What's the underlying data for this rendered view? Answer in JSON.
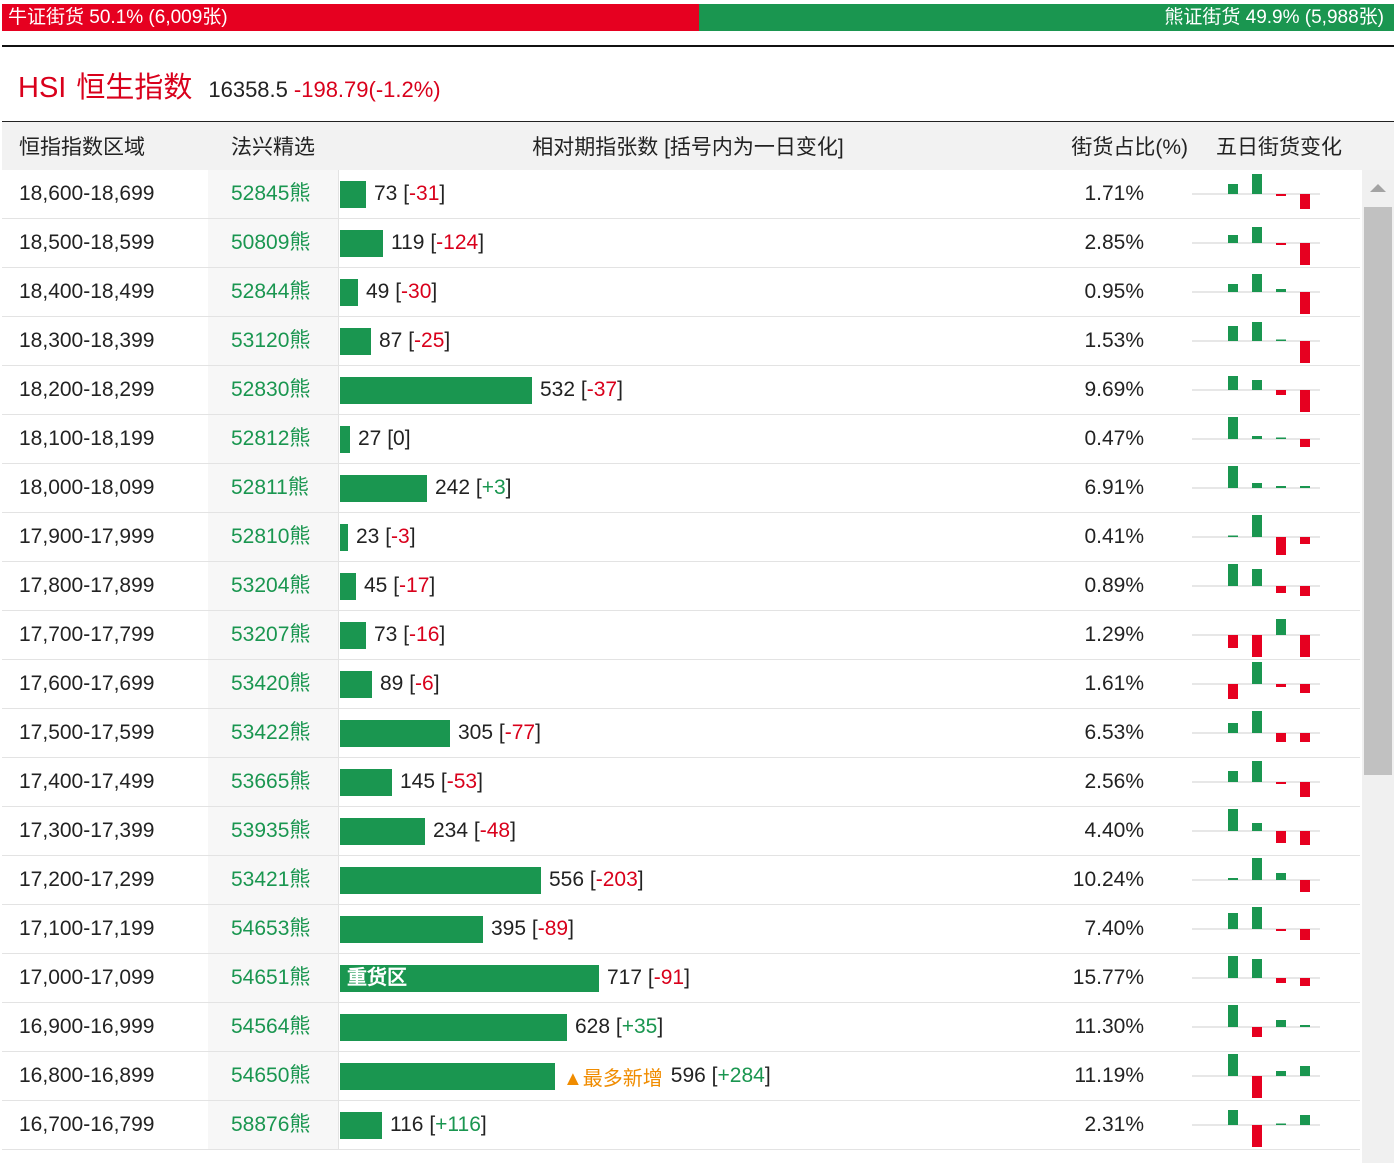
{
  "ratio": {
    "bull_label": "牛证街货 50.1% (6,009张)",
    "bear_label": "熊证街货 49.9% (5,988张)",
    "bull_fraction": 0.501,
    "bull_color": "#e60020",
    "bear_color": "#1a9650"
  },
  "header": {
    "code": "HSI",
    "name": "恒生指数",
    "price": "16358.5",
    "change": "-198.79(-1.2%)"
  },
  "table": {
    "columns": {
      "range": "恒指指数区域",
      "pick": "法兴精选",
      "bars": "相对期指张数 [括号内为一日变化]",
      "share": "街货占比(%)",
      "five_day": "五日街货变化"
    },
    "rows": [
      {
        "range": "18,600-18,699",
        "pick": "52845熊",
        "count": 73,
        "count_text": "73",
        "delta": "-31",
        "tag": "",
        "bar_label": "",
        "share": "1.71%",
        "spark": [
          1,
          2,
          -0.2,
          -1.5
        ]
      },
      {
        "range": "18,500-18,599",
        "pick": "50809熊",
        "count": 119,
        "count_text": "119",
        "delta": "-124",
        "tag": "",
        "bar_label": "",
        "share": "2.85%",
        "spark": [
          0.8,
          1.6,
          -0.2,
          -2.2
        ]
      },
      {
        "range": "18,400-18,499",
        "pick": "52844熊",
        "count": 49,
        "count_text": "49",
        "delta": "-30",
        "tag": "",
        "bar_label": "",
        "share": "0.95%",
        "spark": [
          0.8,
          1.8,
          0.3,
          -2.2
        ]
      },
      {
        "range": "18,300-18,399",
        "pick": "53120熊",
        "count": 87,
        "count_text": "87",
        "delta": "-25",
        "tag": "",
        "bar_label": "",
        "share": "1.53%",
        "spark": [
          1.5,
          1.9,
          0,
          -2.2
        ]
      },
      {
        "range": "18,200-18,299",
        "pick": "52830熊",
        "count": 532,
        "count_text": "532",
        "delta": "-37",
        "tag": "",
        "bar_label": "",
        "share": "9.69%",
        "spark": [
          1.4,
          1,
          -0.5,
          -2.2
        ]
      },
      {
        "range": "18,100-18,199",
        "pick": "52812熊",
        "count": 27,
        "count_text": "27",
        "delta": "0",
        "tag": "",
        "bar_label": "",
        "share": "0.47%",
        "spark": [
          2.2,
          0.3,
          0,
          -0.8
        ]
      },
      {
        "range": "18,000-18,099",
        "pick": "52811熊",
        "count": 242,
        "count_text": "242",
        "delta": "+3",
        "tag": "",
        "bar_label": "",
        "share": "6.91%",
        "spark": [
          2.2,
          0.5,
          0.2,
          0.2
        ]
      },
      {
        "range": "17,900-17,999",
        "pick": "52810熊",
        "count": 23,
        "count_text": "23",
        "delta": "-3",
        "tag": "",
        "bar_label": "",
        "share": "0.41%",
        "spark": [
          0,
          2.2,
          -1.8,
          -0.7
        ]
      },
      {
        "range": "17,800-17,899",
        "pick": "53204熊",
        "count": 45,
        "count_text": "45",
        "delta": "-17",
        "tag": "",
        "bar_label": "",
        "share": "0.89%",
        "spark": [
          2.2,
          1.7,
          -0.7,
          -1
        ]
      },
      {
        "range": "17,700-17,799",
        "pick": "53207熊",
        "count": 73,
        "count_text": "73",
        "delta": "-16",
        "tag": "",
        "bar_label": "",
        "share": "1.29%",
        "spark": [
          -1.3,
          -2.2,
          1.6,
          -2.2
        ]
      },
      {
        "range": "17,600-17,699",
        "pick": "53420熊",
        "count": 89,
        "count_text": "89",
        "delta": "-6",
        "tag": "",
        "bar_label": "",
        "share": "1.61%",
        "spark": [
          -1.5,
          2.2,
          -0.3,
          -0.9
        ]
      },
      {
        "range": "17,500-17,599",
        "pick": "53422熊",
        "count": 305,
        "count_text": "305",
        "delta": "-77",
        "tag": "",
        "bar_label": "",
        "share": "6.53%",
        "spark": [
          1,
          2.2,
          -0.9,
          -0.9
        ]
      },
      {
        "range": "17,400-17,499",
        "pick": "53665熊",
        "count": 145,
        "count_text": "145",
        "delta": "-53",
        "tag": "",
        "bar_label": "",
        "share": "2.56%",
        "spark": [
          1.1,
          2.1,
          -0.2,
          -1.5
        ]
      },
      {
        "range": "17,300-17,399",
        "pick": "53935熊",
        "count": 234,
        "count_text": "234",
        "delta": "-48",
        "tag": "",
        "bar_label": "",
        "share": "4.40%",
        "spark": [
          2.2,
          0.8,
          -1.2,
          -1.4
        ]
      },
      {
        "range": "17,200-17,299",
        "pick": "53421熊",
        "count": 556,
        "count_text": "556",
        "delta": "-203",
        "tag": "",
        "bar_label": "",
        "share": "10.24%",
        "spark": [
          0.2,
          2.2,
          0.7,
          -1.2
        ]
      },
      {
        "range": "17,100-17,199",
        "pick": "54653熊",
        "count": 395,
        "count_text": "395",
        "delta": "-89",
        "tag": "",
        "bar_label": "",
        "share": "7.40%",
        "spark": [
          1.6,
          2.2,
          -0.2,
          -1.1
        ]
      },
      {
        "range": "17,000-17,099",
        "pick": "54651熊",
        "count": 717,
        "count_text": "717",
        "delta": "-91",
        "tag": "",
        "bar_label": "重货区",
        "share": "15.77%",
        "spark": [
          2.2,
          1.9,
          -0.5,
          -0.8
        ]
      },
      {
        "range": "16,900-16,999",
        "pick": "54564熊",
        "count": 628,
        "count_text": "628",
        "delta": "+35",
        "tag": "",
        "bar_label": "",
        "share": "11.30%",
        "spark": [
          2.2,
          -1,
          0.7,
          0.2
        ]
      },
      {
        "range": "16,800-16,899",
        "pick": "54650熊",
        "count": 596,
        "count_text": "596",
        "delta": "+284",
        "tag": "▲最多新增",
        "bar_label": "",
        "share": "11.19%",
        "spark": [
          2.2,
          -2.2,
          0.5,
          1
        ]
      },
      {
        "range": "16,700-16,799",
        "pick": "58876熊",
        "count": 116,
        "count_text": "116",
        "delta": "+116",
        "tag": "",
        "bar_label": "",
        "share": "2.31%",
        "spark": [
          1.5,
          -2.2,
          0,
          1
        ]
      }
    ]
  }
}
